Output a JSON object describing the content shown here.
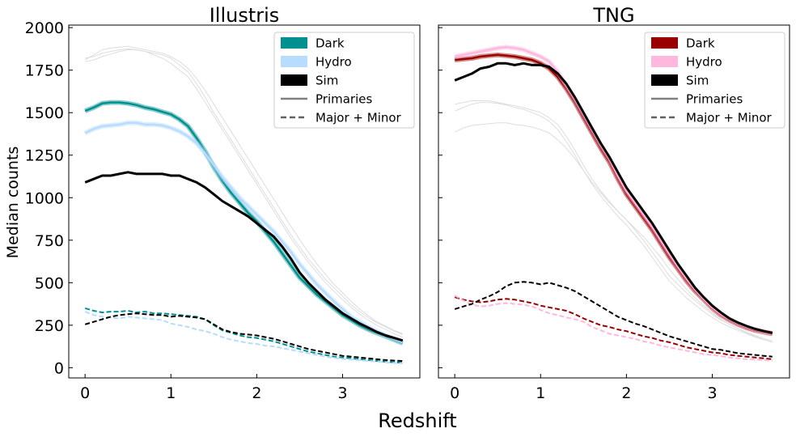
{
  "figure": {
    "xlabel": "Redshift",
    "ylabel": "Median counts"
  },
  "legend_style_labels": [
    "Primaries",
    "Major + Minor"
  ],
  "chart_data": [
    {
      "type": "line",
      "title": "Illustris",
      "xlim": [
        -0.19,
        3.9
      ],
      "ylim": [
        -60,
        2015
      ],
      "xticks": [
        0,
        1,
        2,
        3
      ],
      "yticks": [
        0,
        250,
        500,
        750,
        1000,
        1250,
        1500,
        1750,
        2000
      ],
      "grid": false,
      "legend_position": "top-right",
      "legend": [
        {
          "label": "Dark",
          "color": "#009090",
          "kind": "patch"
        },
        {
          "label": "Hydro",
          "color": "#b7dcff",
          "kind": "patch"
        },
        {
          "label": "Sim",
          "color": "#000000",
          "kind": "patch"
        },
        {
          "label": "Primaries",
          "color": "#808080",
          "kind": "solid"
        },
        {
          "label": "Major + Minor",
          "color": "#606060",
          "kind": "dashed"
        }
      ],
      "x": [
        0,
        0.1,
        0.2,
        0.3,
        0.4,
        0.5,
        0.6,
        0.7,
        0.8,
        0.9,
        1.0,
        1.1,
        1.2,
        1.3,
        1.4,
        1.5,
        1.6,
        1.7,
        1.8,
        1.9,
        2.0,
        2.1,
        2.2,
        2.3,
        2.4,
        2.5,
        2.6,
        2.7,
        2.8,
        2.9,
        3.0,
        3.1,
        3.2,
        3.3,
        3.4,
        3.5,
        3.6,
        3.7
      ],
      "series": [
        {
          "name": "Dark",
          "style": "primaries",
          "color": "#009090",
          "values": [
            1510,
            1530,
            1555,
            1560,
            1560,
            1555,
            1545,
            1530,
            1520,
            1505,
            1490,
            1460,
            1420,
            1350,
            1270,
            1180,
            1100,
            1030,
            970,
            910,
            860,
            800,
            740,
            670,
            600,
            530,
            480,
            430,
            390,
            350,
            310,
            280,
            250,
            225,
            205,
            185,
            165,
            145
          ]
        },
        {
          "name": "Hydro",
          "style": "primaries",
          "color": "#b7dcff",
          "values": [
            1380,
            1405,
            1420,
            1425,
            1430,
            1440,
            1440,
            1430,
            1430,
            1425,
            1410,
            1390,
            1360,
            1320,
            1260,
            1190,
            1120,
            1060,
            1000,
            950,
            900,
            850,
            800,
            740,
            680,
            610,
            550,
            490,
            440,
            390,
            345,
            300,
            270,
            240,
            215,
            190,
            170,
            150
          ]
        },
        {
          "name": "Sim",
          "style": "primaries",
          "color": "#000000",
          "values": [
            1090,
            1110,
            1130,
            1130,
            1140,
            1150,
            1140,
            1140,
            1140,
            1140,
            1130,
            1130,
            1110,
            1090,
            1060,
            1020,
            980,
            950,
            920,
            890,
            850,
            810,
            770,
            710,
            640,
            560,
            500,
            450,
            400,
            360,
            320,
            290,
            260,
            235,
            210,
            190,
            175,
            160
          ]
        },
        {
          "name": "Dark",
          "style": "major_minor",
          "color": "#009090",
          "values": [
            350,
            335,
            325,
            330,
            330,
            335,
            325,
            330,
            320,
            320,
            315,
            310,
            305,
            300,
            285,
            250,
            220,
            205,
            190,
            180,
            175,
            165,
            155,
            140,
            125,
            110,
            95,
            85,
            75,
            65,
            60,
            55,
            50,
            45,
            40,
            35,
            32,
            30
          ]
        },
        {
          "name": "Hydro",
          "style": "major_minor",
          "color": "#b7dcff",
          "values": [
            330,
            310,
            300,
            295,
            290,
            300,
            295,
            290,
            285,
            280,
            260,
            250,
            240,
            225,
            215,
            200,
            180,
            165,
            155,
            145,
            140,
            130,
            125,
            115,
            105,
            95,
            85,
            75,
            65,
            58,
            52,
            48,
            44,
            40,
            36,
            32,
            28,
            25
          ]
        },
        {
          "name": "Sim",
          "style": "major_minor",
          "color": "#000000",
          "values": [
            255,
            270,
            285,
            300,
            310,
            315,
            320,
            315,
            310,
            310,
            300,
            305,
            300,
            295,
            285,
            255,
            225,
            210,
            200,
            195,
            190,
            180,
            170,
            155,
            140,
            125,
            110,
            100,
            90,
            80,
            70,
            65,
            60,
            55,
            50,
            45,
            42,
            40
          ]
        },
        {
          "name": "",
          "style": "other_panel",
          "color": "#dddddd",
          "values": [
            1820,
            1830,
            1850,
            1860,
            1870,
            1875,
            1870,
            1860,
            1850,
            1840,
            1820,
            1780,
            1740,
            1670,
            1590,
            1500,
            1420,
            1340,
            1260,
            1180,
            1100,
            1020,
            940,
            860,
            780,
            710,
            640,
            580,
            520,
            470,
            420,
            370,
            330,
            295,
            265,
            240,
            215,
            195
          ]
        },
        {
          "name": "",
          "style": "other_panel",
          "color": "#dddddd",
          "values": [
            1800,
            1810,
            1830,
            1845,
            1860,
            1870,
            1870,
            1860,
            1840,
            1820,
            1790,
            1750,
            1710,
            1640,
            1560,
            1480,
            1400,
            1320,
            1240,
            1160,
            1080,
            1000,
            920,
            840,
            760,
            690,
            620,
            560,
            500,
            450,
            400,
            355,
            315,
            280,
            250,
            225,
            200,
            180
          ]
        },
        {
          "name": "",
          "style": "other_panel",
          "color": "#dddddd",
          "values": [
            1810,
            1840,
            1870,
            1880,
            1885,
            1890,
            1880,
            1870,
            1860,
            1850,
            1830,
            1800,
            1760,
            1700,
            1630,
            1550,
            1470,
            1390,
            1310,
            1230,
            1150,
            1070,
            990,
            910,
            830,
            755,
            680,
            610,
            550,
            490,
            440,
            390,
            345,
            305,
            270,
            245,
            220,
            200
          ]
        }
      ]
    },
    {
      "type": "line",
      "title": "TNG",
      "xlim": [
        -0.19,
        3.9
      ],
      "ylim": [
        -60,
        2015
      ],
      "xticks": [
        0,
        1,
        2,
        3
      ],
      "yticks": [
        0,
        250,
        500,
        750,
        1000,
        1250,
        1500,
        1750,
        2000
      ],
      "grid": false,
      "legend_position": "top-right",
      "legend": [
        {
          "label": "Dark",
          "color": "#990000",
          "kind": "patch"
        },
        {
          "label": "Hydro",
          "color": "#ffb7de",
          "kind": "patch"
        },
        {
          "label": "Sim",
          "color": "#000000",
          "kind": "patch"
        },
        {
          "label": "Primaries",
          "color": "#808080",
          "kind": "solid"
        },
        {
          "label": "Major + Minor",
          "color": "#606060",
          "kind": "dashed"
        }
      ],
      "x": [
        0,
        0.1,
        0.2,
        0.3,
        0.4,
        0.5,
        0.6,
        0.7,
        0.8,
        0.9,
        1.0,
        1.1,
        1.2,
        1.3,
        1.4,
        1.5,
        1.6,
        1.7,
        1.8,
        1.9,
        2.0,
        2.1,
        2.2,
        2.3,
        2.4,
        2.5,
        2.6,
        2.7,
        2.8,
        2.9,
        3.0,
        3.1,
        3.2,
        3.3,
        3.4,
        3.5,
        3.6,
        3.7
      ],
      "series": [
        {
          "name": "Dark",
          "style": "primaries",
          "color": "#990000",
          "values": [
            1810,
            1815,
            1820,
            1830,
            1835,
            1840,
            1835,
            1830,
            1820,
            1810,
            1790,
            1760,
            1710,
            1640,
            1560,
            1470,
            1380,
            1290,
            1210,
            1110,
            1020,
            950,
            880,
            810,
            730,
            650,
            580,
            510,
            450,
            400,
            350,
            310,
            280,
            255,
            235,
            220,
            210,
            200
          ]
        },
        {
          "name": "Hydro",
          "style": "primaries",
          "color": "#ffb7de",
          "values": [
            1830,
            1840,
            1850,
            1860,
            1870,
            1880,
            1885,
            1880,
            1870,
            1850,
            1830,
            1800,
            1740,
            1660,
            1580,
            1490,
            1400,
            1310,
            1230,
            1130,
            1040,
            970,
            900,
            830,
            750,
            670,
            595,
            525,
            460,
            405,
            355,
            315,
            285,
            260,
            240,
            225,
            212,
            203
          ]
        },
        {
          "name": "Sim",
          "style": "primaries",
          "color": "#000000",
          "values": [
            1690,
            1710,
            1730,
            1760,
            1770,
            1790,
            1790,
            1780,
            1790,
            1780,
            1780,
            1770,
            1730,
            1670,
            1590,
            1500,
            1410,
            1320,
            1240,
            1150,
            1060,
            990,
            920,
            850,
            770,
            690,
            610,
            540,
            470,
            415,
            365,
            325,
            290,
            265,
            245,
            228,
            215,
            205
          ]
        },
        {
          "name": "Dark",
          "style": "major_minor",
          "color": "#990000",
          "values": [
            415,
            400,
            390,
            385,
            390,
            400,
            405,
            400,
            390,
            380,
            365,
            355,
            345,
            335,
            315,
            290,
            270,
            250,
            240,
            225,
            215,
            200,
            185,
            175,
            160,
            150,
            135,
            120,
            110,
            100,
            90,
            85,
            75,
            70,
            65,
            60,
            55,
            50
          ]
        },
        {
          "name": "Hydro",
          "style": "major_minor",
          "color": "#ffb7de",
          "values": [
            425,
            395,
            370,
            360,
            365,
            375,
            380,
            375,
            370,
            360,
            340,
            320,
            310,
            295,
            285,
            270,
            240,
            220,
            200,
            190,
            180,
            170,
            155,
            145,
            130,
            120,
            110,
            100,
            90,
            80,
            75,
            68,
            60,
            55,
            50,
            48,
            45,
            42
          ]
        },
        {
          "name": "Sim",
          "style": "major_minor",
          "color": "#000000",
          "values": [
            345,
            360,
            375,
            400,
            420,
            445,
            480,
            500,
            505,
            500,
            490,
            500,
            485,
            470,
            450,
            420,
            390,
            360,
            330,
            300,
            280,
            260,
            245,
            225,
            205,
            185,
            170,
            155,
            140,
            125,
            110,
            105,
            95,
            85,
            80,
            75,
            70,
            65
          ]
        },
        {
          "name": "",
          "style": "other_panel",
          "color": "#dddddd",
          "values": [
            1510,
            1530,
            1550,
            1560,
            1560,
            1555,
            1545,
            1530,
            1520,
            1500,
            1480,
            1450,
            1400,
            1330,
            1250,
            1160,
            1080,
            1010,
            950,
            890,
            840,
            780,
            720,
            650,
            580,
            510,
            460,
            410,
            370,
            330,
            295,
            265,
            240,
            220,
            200,
            180,
            165,
            150
          ]
        },
        {
          "name": "",
          "style": "other_panel",
          "color": "#dddddd",
          "values": [
            1385,
            1410,
            1425,
            1430,
            1435,
            1440,
            1440,
            1430,
            1425,
            1415,
            1400,
            1380,
            1340,
            1290,
            1230,
            1160,
            1090,
            1030,
            970,
            920,
            870,
            820,
            770,
            710,
            650,
            580,
            520,
            460,
            410,
            365,
            325,
            285,
            255,
            230,
            205,
            185,
            165,
            150
          ]
        },
        {
          "name": "",
          "style": "other_panel",
          "color": "#dddddd",
          "values": [
            1550,
            1560,
            1570,
            1570,
            1570,
            1560,
            1550,
            1540,
            1530,
            1515,
            1500,
            1470,
            1430,
            1360,
            1280,
            1190,
            1110,
            1040,
            980,
            920,
            870,
            810,
            750,
            680,
            610,
            540,
            490,
            440,
            395,
            355,
            315,
            280,
            255,
            230,
            210,
            190,
            172,
            158
          ]
        }
      ]
    }
  ]
}
